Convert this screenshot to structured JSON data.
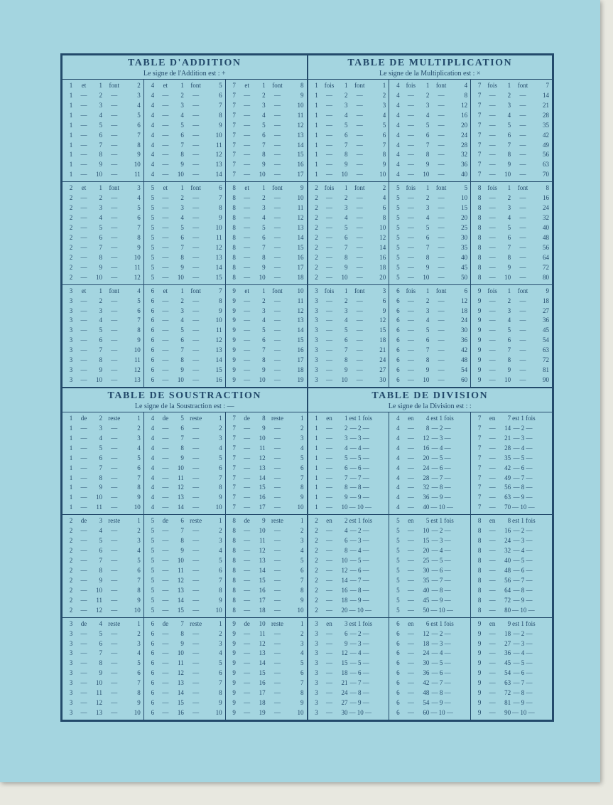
{
  "quads": [
    {
      "title": "TABLE D'ADDITION",
      "subtitle": "Le signe de l'Addition est : +",
      "word1": "et",
      "word2": "font",
      "dash": "—",
      "groups": [
        [
          [
            1,
            1,
            10,
            1
          ],
          [
            4,
            1,
            10,
            1
          ],
          [
            7,
            1,
            10,
            1
          ]
        ],
        [
          [
            2,
            1,
            10,
            1
          ],
          [
            5,
            1,
            10,
            1
          ],
          [
            8,
            1,
            10,
            1
          ]
        ],
        [
          [
            3,
            1,
            10,
            1
          ],
          [
            6,
            1,
            10,
            1
          ],
          [
            9,
            1,
            10,
            1
          ]
        ]
      ],
      "op": "add"
    },
    {
      "title": "TABLE DE MULTIPLICATION",
      "subtitle": "Le signe de la Multiplication est : ×",
      "word1": "fois",
      "word2": "font",
      "dash": "—",
      "groups": [
        [
          [
            1,
            1,
            10,
            1
          ],
          [
            4,
            1,
            10,
            1
          ],
          [
            7,
            1,
            10,
            1
          ]
        ],
        [
          [
            2,
            1,
            10,
            1
          ],
          [
            5,
            1,
            10,
            1
          ],
          [
            8,
            1,
            10,
            1
          ]
        ],
        [
          [
            3,
            1,
            10,
            1
          ],
          [
            6,
            1,
            10,
            1
          ],
          [
            9,
            1,
            10,
            1
          ]
        ]
      ],
      "op": "mul"
    },
    {
      "title": "TABLE DE SOUSTRACTION",
      "subtitle": "Le signe de la Soustraction est : —",
      "word1": "de",
      "word2": "reste",
      "dash": "—",
      "groups": [
        [
          [
            1,
            2,
            11,
            1
          ],
          [
            4,
            5,
            14,
            1
          ],
          [
            7,
            8,
            17,
            1
          ]
        ],
        [
          [
            2,
            3,
            12,
            1
          ],
          [
            5,
            6,
            15,
            1
          ],
          [
            8,
            9,
            18,
            1
          ]
        ],
        [
          [
            3,
            4,
            13,
            1
          ],
          [
            6,
            7,
            16,
            1
          ],
          [
            9,
            10,
            19,
            1
          ]
        ]
      ],
      "op": "sub"
    },
    {
      "title": "TABLE DE DIVISION",
      "subtitle": "Le signe de la Division est : :",
      "word1": "en",
      "word2": "est",
      "word3": "fois",
      "dash": "—",
      "groups": [
        [
          [
            1,
            1,
            10,
            1
          ],
          [
            4,
            4,
            40,
            4
          ],
          [
            7,
            7,
            70,
            7
          ]
        ],
        [
          [
            2,
            2,
            20,
            2
          ],
          [
            5,
            5,
            50,
            5
          ],
          [
            8,
            8,
            80,
            8
          ]
        ],
        [
          [
            3,
            3,
            30,
            3
          ],
          [
            6,
            6,
            60,
            6
          ],
          [
            9,
            9,
            90,
            9
          ]
        ]
      ],
      "op": "div"
    }
  ],
  "colors": {
    "ink": "#234a6b",
    "paper": "#a4d5e0",
    "bg": "#e8e8e0"
  }
}
